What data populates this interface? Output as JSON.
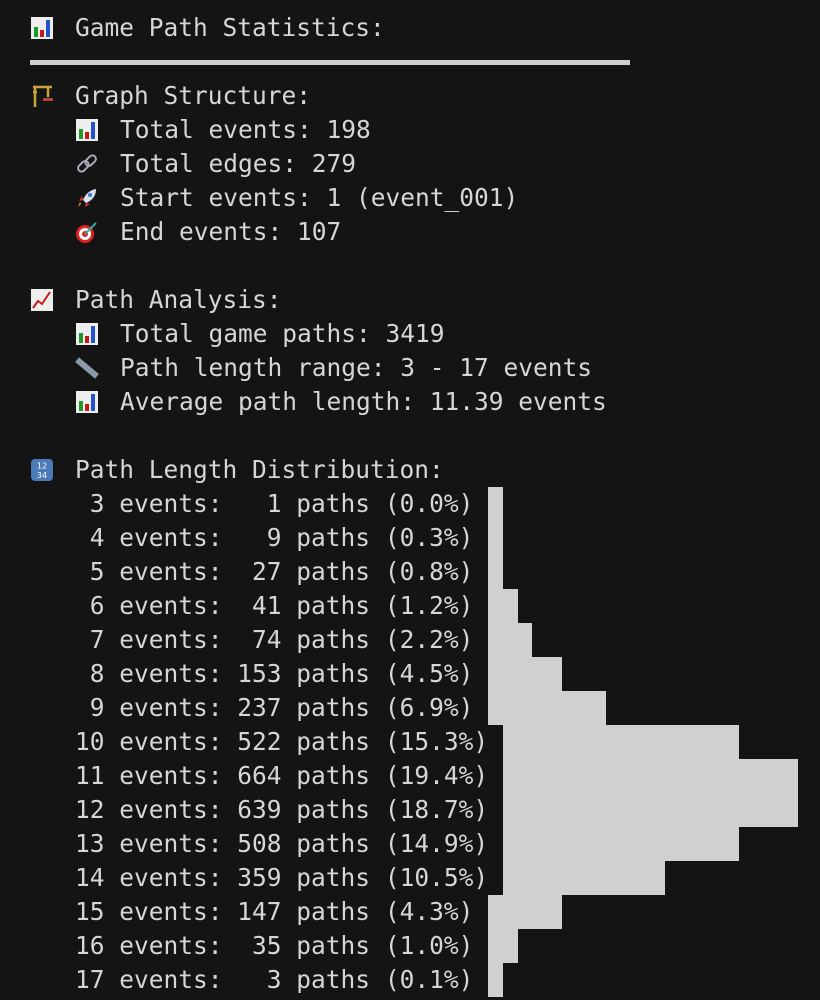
{
  "title": {
    "icon": "bar-chart-icon",
    "text": "Game Path Statistics:"
  },
  "graph_structure": {
    "icon": "construction-crane-icon",
    "heading": "Graph Structure:",
    "items": [
      {
        "icon": "bar-chart-icon",
        "text": "Total events: 198"
      },
      {
        "icon": "link-icon",
        "text": "Total edges: 279"
      },
      {
        "icon": "rocket-icon",
        "text": "Start events: 1 (event_001)"
      },
      {
        "icon": "target-icon",
        "text": "End events: 107"
      }
    ]
  },
  "path_analysis": {
    "icon": "chart-increasing-icon",
    "heading": "Path Analysis:",
    "items": [
      {
        "icon": "bar-chart-icon",
        "text": "Total game paths: 3419"
      },
      {
        "icon": "ruler-icon",
        "text": "Path length range: 3 - 17 events"
      },
      {
        "icon": "bar-chart-icon",
        "text": "Average path length: 11.39 events"
      }
    ]
  },
  "distribution": {
    "icon": "numbers-1234-icon",
    "heading": "Path Length Distribution:",
    "bar_color": "#d0d0d0",
    "rows": [
      {
        "length": 3,
        "paths": 1,
        "percent": "0.0%"
      },
      {
        "length": 4,
        "paths": 9,
        "percent": "0.3%"
      },
      {
        "length": 5,
        "paths": 27,
        "percent": "0.8%"
      },
      {
        "length": 6,
        "paths": 41,
        "percent": "1.2%"
      },
      {
        "length": 7,
        "paths": 74,
        "percent": "2.2%"
      },
      {
        "length": 8,
        "paths": 153,
        "percent": "4.5%"
      },
      {
        "length": 9,
        "paths": 237,
        "percent": "6.9%"
      },
      {
        "length": 10,
        "paths": 522,
        "percent": "15.3%"
      },
      {
        "length": 11,
        "paths": 664,
        "percent": "19.4%"
      },
      {
        "length": 12,
        "paths": 639,
        "percent": "18.7%"
      },
      {
        "length": 13,
        "paths": 508,
        "percent": "14.9%"
      },
      {
        "length": 14,
        "paths": 359,
        "percent": "10.5%"
      },
      {
        "length": 15,
        "paths": 147,
        "percent": "4.3%"
      },
      {
        "length": 16,
        "paths": 35,
        "percent": "1.0%"
      },
      {
        "length": 17,
        "paths": 3,
        "percent": "0.1%"
      }
    ],
    "events_word": "events:",
    "paths_word": "paths"
  }
}
